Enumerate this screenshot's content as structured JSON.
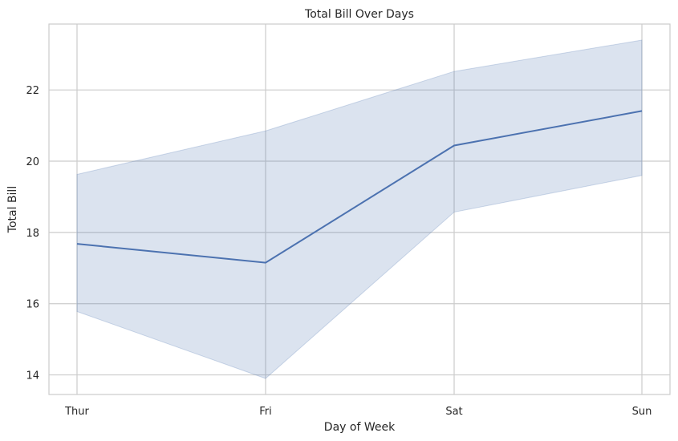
{
  "chart_data": {
    "type": "line",
    "title": "Total Bill Over Days",
    "xlabel": "Day of Week",
    "ylabel": "Total Bill",
    "categories": [
      "Thur",
      "Fri",
      "Sat",
      "Sun"
    ],
    "values": [
      17.68,
      17.15,
      20.44,
      21.41
    ],
    "ci_lower": [
      15.78,
      13.9,
      18.57,
      19.6
    ],
    "ci_upper": [
      19.63,
      20.85,
      22.52,
      23.4
    ],
    "ylim": [
      13.45,
      23.85
    ],
    "yticks": [
      14,
      16,
      18,
      20,
      22
    ],
    "grid": true,
    "colors": {
      "line": "#4c72b0",
      "band": "#4c72b0",
      "grid": "#cccccc",
      "text": "#262626"
    }
  }
}
